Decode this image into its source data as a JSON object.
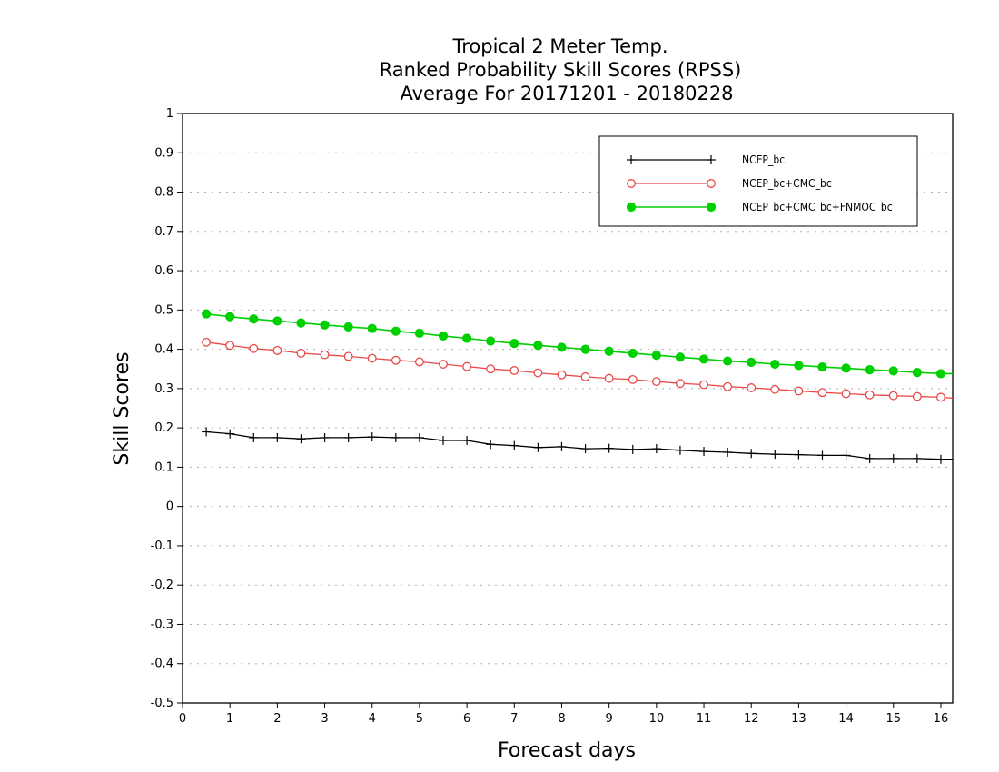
{
  "chart_data": {
    "type": "line",
    "title_lines": [
      "Tropical 2 Meter Temp.",
      "Ranked Probability Skill Scores (RPSS)",
      "Average For 20171201 - 20180228"
    ],
    "xlabel": "Forecast days",
    "ylabel": "Skill Scores",
    "xlim": [
      0,
      16.25
    ],
    "ylim": [
      -0.5,
      1
    ],
    "xticks": [
      "0",
      "1",
      "2",
      "3",
      "4",
      "5",
      "6",
      "7",
      "8",
      "9",
      "10",
      "11",
      "12",
      "13",
      "14",
      "15",
      "16"
    ],
    "yticks": [
      "1",
      "0.9",
      "0.8",
      "0.7",
      "0.6",
      "0.5",
      "0.4",
      "0.3",
      "0.2",
      "0.1",
      "0",
      "-0.1",
      "-0.2",
      "-0.3",
      "-0.4",
      "-0.5"
    ],
    "grid": "horizontal dotted",
    "legend_position": "top-right",
    "x": [
      0.5,
      1,
      1.5,
      2,
      2.5,
      3,
      3.5,
      4,
      4.5,
      5,
      5.5,
      6,
      6.5,
      7,
      7.5,
      8,
      8.5,
      9,
      9.5,
      10,
      10.5,
      11,
      11.5,
      12,
      12.5,
      13,
      13.5,
      14,
      14.5,
      15,
      15.5,
      16,
      16.25
    ],
    "series": [
      {
        "name": "NCEP_bc",
        "color": "#000000",
        "marker": "plus",
        "values": [
          0.19,
          0.185,
          0.175,
          0.175,
          0.172,
          0.175,
          0.175,
          0.177,
          0.175,
          0.175,
          0.168,
          0.168,
          0.158,
          0.155,
          0.15,
          0.152,
          0.147,
          0.148,
          0.145,
          0.147,
          0.143,
          0.14,
          0.138,
          0.135,
          0.133,
          0.132,
          0.13,
          0.13,
          0.122,
          0.122,
          0.122,
          0.12,
          0.12
        ]
      },
      {
        "name": "NCEP_bc+CMC_bc",
        "color": "#e84a4a",
        "marker": "open-circle",
        "values": [
          0.418,
          0.41,
          0.402,
          0.397,
          0.39,
          0.386,
          0.382,
          0.377,
          0.372,
          0.368,
          0.362,
          0.356,
          0.35,
          0.346,
          0.34,
          0.335,
          0.33,
          0.326,
          0.323,
          0.318,
          0.313,
          0.31,
          0.305,
          0.302,
          0.298,
          0.294,
          0.29,
          0.287,
          0.284,
          0.282,
          0.28,
          0.278,
          0.276
        ]
      },
      {
        "name": "NCEP_bc+CMC_bc+FNMOC_bc",
        "color": "#00d000",
        "marker": "filled-circle",
        "values": [
          0.49,
          0.483,
          0.477,
          0.472,
          0.467,
          0.462,
          0.457,
          0.453,
          0.446,
          0.441,
          0.434,
          0.428,
          0.421,
          0.415,
          0.41,
          0.405,
          0.4,
          0.395,
          0.39,
          0.385,
          0.38,
          0.375,
          0.37,
          0.367,
          0.362,
          0.359,
          0.355,
          0.352,
          0.348,
          0.345,
          0.341,
          0.338,
          0.338
        ]
      }
    ]
  }
}
